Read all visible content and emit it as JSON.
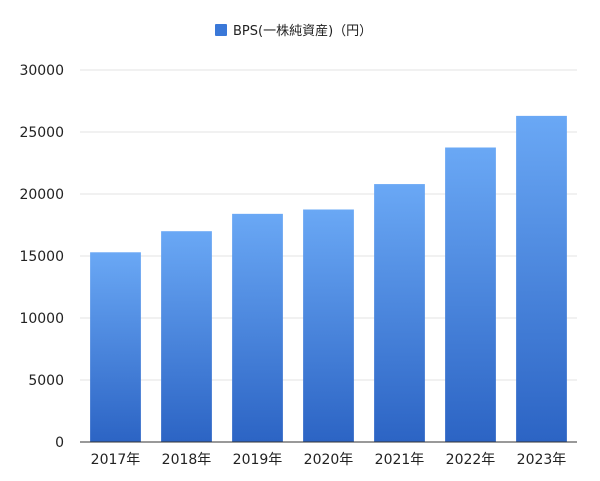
{
  "chart_data": {
    "type": "bar",
    "categories": [
      "2017年",
      "2018年",
      "2019年",
      "2020年",
      "2021年",
      "2022年",
      "2023年"
    ],
    "series": [
      {
        "name": "BPS(一株純資産)（円）",
        "values": [
          15300,
          17000,
          18400,
          18750,
          20800,
          23750,
          26300
        ]
      }
    ],
    "ylim": [
      0,
      30000
    ],
    "yticks": [
      0,
      5000,
      10000,
      15000,
      20000,
      25000,
      30000
    ],
    "grid": true,
    "legend_position": "top-center",
    "colors": {
      "bar_top": "#6aa8f5",
      "bar_bottom": "#2c64c4",
      "legend_swatch": "#3a78d8",
      "grid": "#e3e3e3",
      "axis": "#333333",
      "text": "#222222"
    }
  }
}
